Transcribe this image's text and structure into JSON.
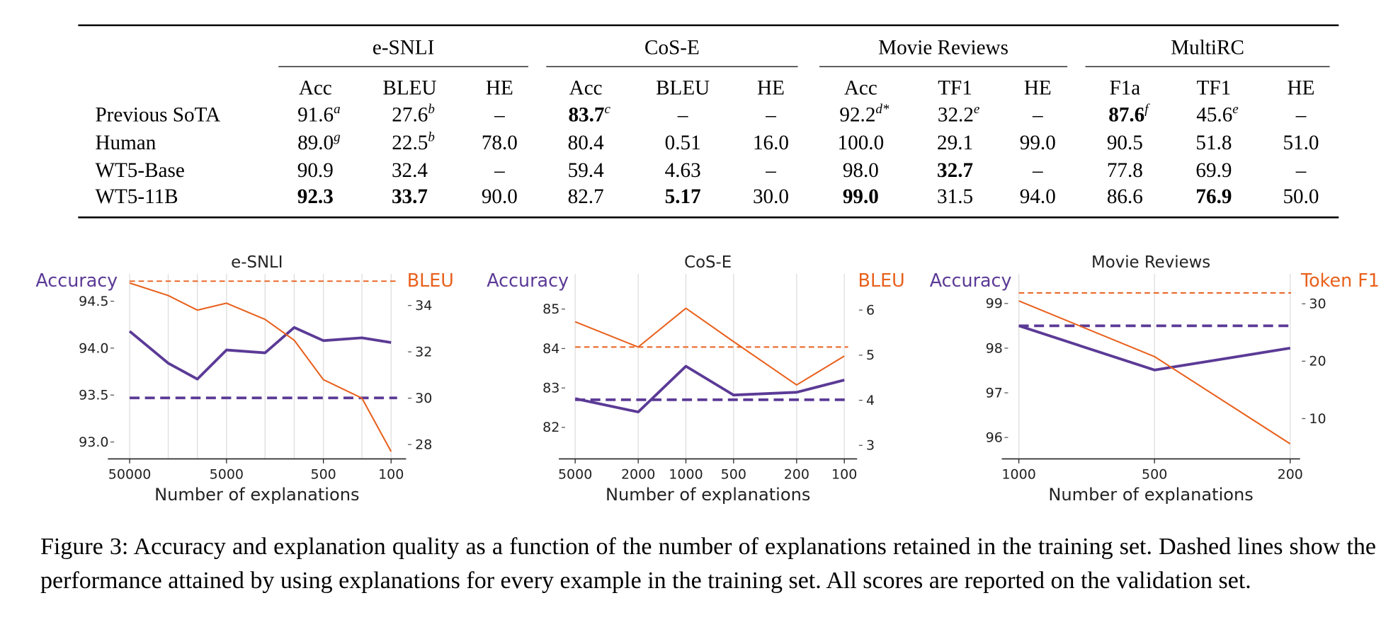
{
  "table": {
    "groups": [
      {
        "name": "e-SNLI",
        "columns": [
          "Acc",
          "BLEU",
          "HE"
        ]
      },
      {
        "name": "CoS-E",
        "columns": [
          "Acc",
          "BLEU",
          "HE"
        ]
      },
      {
        "name": "Movie Reviews",
        "columns": [
          "Acc",
          "TF1",
          "HE"
        ]
      },
      {
        "name": "MultiRC",
        "columns": [
          "F1a",
          "TF1",
          "HE"
        ]
      }
    ],
    "rows": [
      {
        "label": "Previous SoTA",
        "cells": [
          {
            "text": "91.6",
            "sup": "a"
          },
          {
            "text": "27.6",
            "sup": "b"
          },
          {
            "text": "–"
          },
          {
            "text": "83.7",
            "sup": "c",
            "bold": true
          },
          {
            "text": "–"
          },
          {
            "text": "–"
          },
          {
            "text": "92.2",
            "sup": "d*"
          },
          {
            "text": "32.2",
            "sup": "e"
          },
          {
            "text": "–"
          },
          {
            "text": "87.6",
            "sup": "f",
            "bold": true
          },
          {
            "text": "45.6",
            "sup": "e"
          },
          {
            "text": "–"
          }
        ]
      },
      {
        "label": "Human",
        "cells": [
          {
            "text": "89.0",
            "sup": "g"
          },
          {
            "text": "22.5",
            "sup": "b"
          },
          {
            "text": "78.0"
          },
          {
            "text": "80.4"
          },
          {
            "text": "0.51"
          },
          {
            "text": "16.0"
          },
          {
            "text": "100.0"
          },
          {
            "text": "29.1"
          },
          {
            "text": "99.0"
          },
          {
            "text": "90.5"
          },
          {
            "text": "51.8"
          },
          {
            "text": "51.0"
          }
        ]
      },
      {
        "label": "WT5-Base",
        "cells": [
          {
            "text": "90.9"
          },
          {
            "text": "32.4"
          },
          {
            "text": "–"
          },
          {
            "text": "59.4"
          },
          {
            "text": "4.63"
          },
          {
            "text": "–"
          },
          {
            "text": "98.0"
          },
          {
            "text": "32.7",
            "bold": true
          },
          {
            "text": "–"
          },
          {
            "text": "77.8"
          },
          {
            "text": "69.9"
          },
          {
            "text": "–"
          }
        ]
      },
      {
        "label": "WT5-11B",
        "cells": [
          {
            "text": "92.3",
            "bold": true
          },
          {
            "text": "33.7",
            "bold": true
          },
          {
            "text": "90.0"
          },
          {
            "text": "82.7"
          },
          {
            "text": "5.17",
            "bold": true
          },
          {
            "text": "30.0"
          },
          {
            "text": "99.0",
            "bold": true
          },
          {
            "text": "31.5"
          },
          {
            "text": "94.0"
          },
          {
            "text": "86.6"
          },
          {
            "text": "76.9",
            "bold": true
          },
          {
            "text": "50.0"
          }
        ]
      }
    ]
  },
  "chart_data": [
    {
      "type": "line",
      "title": "e-SNLI",
      "xlabel": "Number of explanations",
      "ylabel": "Accuracy",
      "y2label": "BLEU",
      "xscale": "log",
      "x": [
        50000,
        20000,
        10000,
        5000,
        2000,
        1000,
        500,
        200,
        100
      ],
      "xlim": [
        84000,
        70
      ],
      "xticks": [
        50000,
        5000,
        500,
        100
      ],
      "ylim": [
        92.82,
        94.79
      ],
      "yticks": [
        {
          "value": 93,
          "label": "93.0"
        },
        93.5,
        {
          "value": 94,
          "label": "94.0"
        },
        94.5
      ],
      "y2lim": [
        27.38,
        35.36
      ],
      "y2ticks": [
        28,
        30,
        32,
        34
      ],
      "grid": true,
      "series": [
        {
          "color": "#5b3a96",
          "values": [
            94.18,
            93.84,
            93.67,
            93.98,
            93.95,
            94.22,
            94.08,
            94.11,
            94.06
          ],
          "dashed_value": 93.47
        },
        {
          "color": "#e8601c",
          "axis": "y2",
          "values": [
            34.97,
            34.43,
            33.8,
            34.1,
            33.4,
            32.5,
            30.8,
            30.0,
            27.7
          ],
          "dashed_value": 35.05
        }
      ]
    },
    {
      "type": "line",
      "title": "CoS-E",
      "xlabel": "Number of explanations",
      "ylabel": "Accuracy",
      "y2label": "BLEU",
      "xscale": "log",
      "x": [
        5000,
        2000,
        1000,
        500,
        200,
        100
      ],
      "xlim": [
        6340,
        83
      ],
      "xticks": [
        5000,
        2000,
        1000,
        500,
        200,
        100
      ],
      "ylim": [
        81.2,
        85.89
      ],
      "yticks": [
        82,
        83,
        84,
        85
      ],
      "y2lim": [
        2.7,
        6.8
      ],
      "y2ticks": [
        3,
        4,
        5,
        6
      ],
      "grid": true,
      "series": [
        {
          "color": "#5b3a96",
          "values": [
            82.73,
            82.39,
            83.55,
            82.82,
            82.89,
            83.2
          ],
          "dashed_value": 82.7
        },
        {
          "color": "#e8601c",
          "axis": "y2",
          "values": [
            5.74,
            5.18,
            6.04,
            5.3,
            4.34,
            4.98
          ],
          "dashed_value": 5.18
        }
      ]
    },
    {
      "type": "line",
      "title": "Movie Reviews",
      "xlabel": "Number of explanations",
      "ylabel": "Accuracy",
      "y2label": "Token F1",
      "categories": [
        "1000",
        "500",
        "200"
      ],
      "ylim": [
        95.52,
        99.66
      ],
      "yticks": [
        96,
        97,
        98,
        99
      ],
      "y2lim": [
        2.97,
        35.2
      ],
      "y2ticks": [
        10,
        20,
        30
      ],
      "grid": true,
      "series": [
        {
          "color": "#5b3a96",
          "values": [
            98.5,
            97.51,
            98.0
          ],
          "dashed_value": 98.5
        },
        {
          "color": "#e8601c",
          "axis": "y2",
          "values": [
            30.5,
            20.8,
            5.6
          ],
          "dashed_value": 31.9
        }
      ]
    }
  ],
  "caption": "Figure 3: Accuracy and explanation quality as a function of the number of explanations retained in the training set. Dashed lines show the performance attained by using explanations for every example in the training set. All scores are reported on the validation set."
}
